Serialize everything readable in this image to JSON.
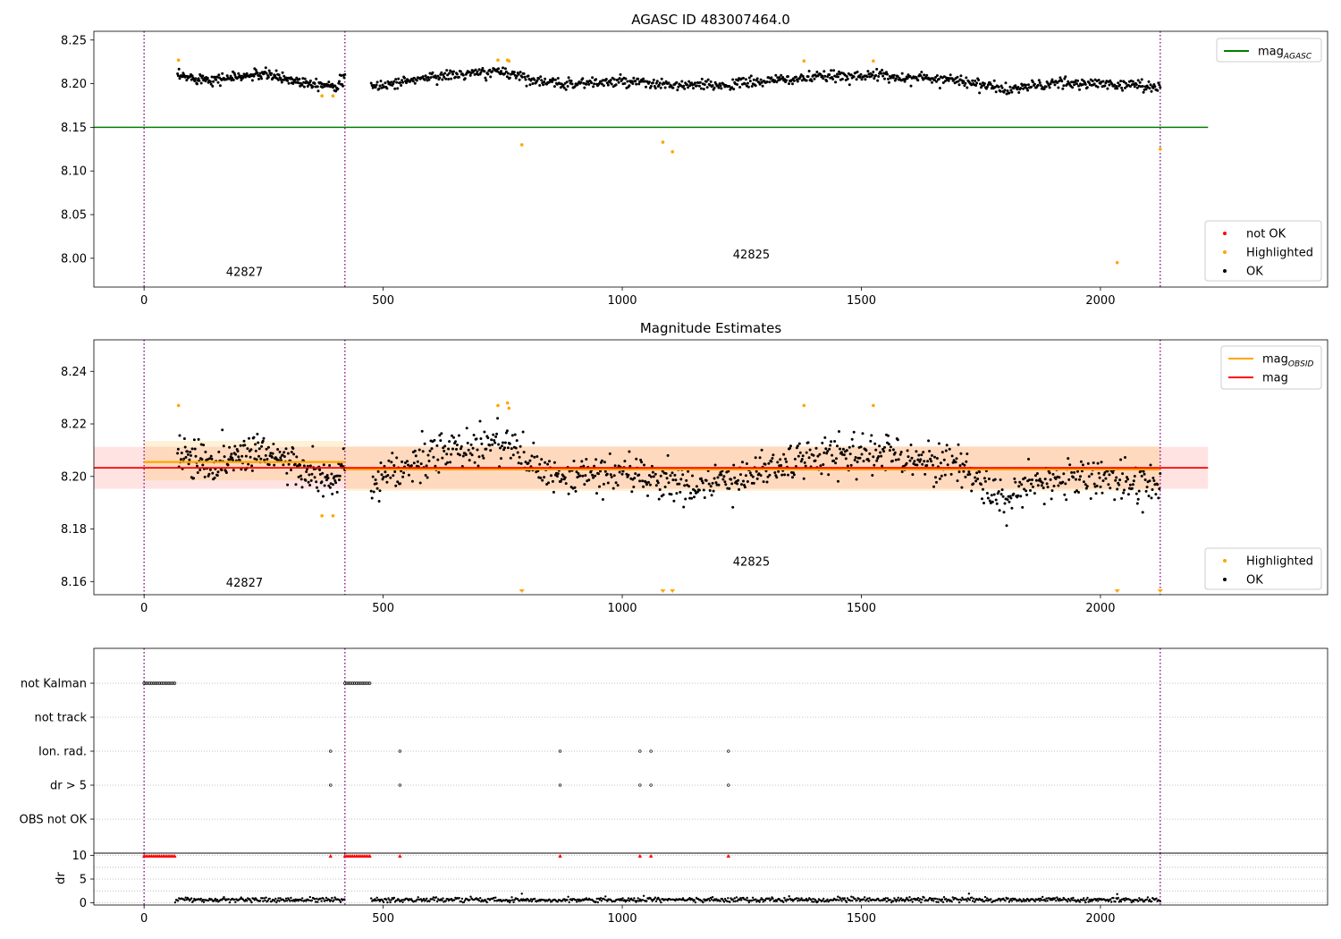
{
  "figure": {
    "title": "AGASC ID 483007464.0"
  },
  "chart_data": [
    {
      "type": "scatter",
      "title": "",
      "xlabel": "",
      "ylabel": "",
      "xlim": [
        -105,
        2475
      ],
      "ylim": [
        7.967,
        8.26
      ],
      "x_ticks": [
        0,
        500,
        1000,
        1500,
        2000
      ],
      "y_ticks": [
        8.0,
        8.05,
        8.1,
        8.15,
        8.2,
        8.25
      ],
      "y_tick_labels": [
        "8.00",
        "8.05",
        "8.10",
        "8.15",
        "8.20",
        "8.25"
      ],
      "obs_boundaries": [
        0,
        420,
        2125
      ],
      "obs_labels": [
        {
          "text": "42827",
          "x": 210,
          "y": 7.98
        },
        {
          "text": "42825",
          "x": 1270,
          "y": 8.0
        }
      ],
      "reference_lines": [
        {
          "name": "mag_AGASC",
          "y": 8.15,
          "x_range": [
            -105,
            2225
          ],
          "color": "#008000"
        }
      ],
      "ok_segments": [
        {
          "x_range": [
            70,
            420
          ],
          "profile": [
            [
              70,
              8.208
            ],
            [
              150,
              8.205
            ],
            [
              250,
              8.211
            ],
            [
              320,
              8.203
            ],
            [
              400,
              8.198
            ],
            [
              420,
              8.205
            ]
          ],
          "scatter": 0.005,
          "count": 240
        },
        {
          "x_range": [
            475,
            2125
          ],
          "profile": [
            [
              475,
              8.196
            ],
            [
              600,
              8.208
            ],
            [
              750,
              8.214
            ],
            [
              850,
              8.2
            ],
            [
              1000,
              8.202
            ],
            [
              1100,
              8.198
            ],
            [
              1200,
              8.198
            ],
            [
              1300,
              8.203
            ],
            [
              1400,
              8.207
            ],
            [
              1500,
              8.21
            ],
            [
              1600,
              8.207
            ],
            [
              1700,
              8.205
            ],
            [
              1800,
              8.193
            ],
            [
              1900,
              8.2
            ],
            [
              2000,
              8.2
            ],
            [
              2125,
              8.197
            ]
          ],
          "scatter": 0.005,
          "count": 900
        }
      ],
      "highlighted": [
        [
          72,
          8.227
        ],
        [
          372,
          8.186
        ],
        [
          395,
          8.186
        ],
        [
          740,
          8.227
        ],
        [
          760,
          8.227
        ],
        [
          763,
          8.226
        ],
        [
          790,
          8.13
        ],
        [
          1085,
          8.133
        ],
        [
          1105,
          8.122
        ],
        [
          1380,
          8.226
        ],
        [
          1525,
          8.226
        ],
        [
          2035,
          7.995
        ],
        [
          2125,
          8.125
        ]
      ],
      "colors": {
        "ok": "#000000",
        "highlighted": "#ffa500",
        "not_ok": "#ff0000",
        "boundary": "#800080"
      },
      "legends": [
        {
          "position": "top-right",
          "entries": [
            {
              "label": "mag",
              "sub": "AGASC",
              "kind": "line",
              "color": "#008000"
            }
          ]
        },
        {
          "position": "bottom-right",
          "entries": [
            {
              "label": "not OK",
              "kind": "dot",
              "color": "#ff0000"
            },
            {
              "label": "Highlighted",
              "kind": "dot",
              "color": "#ffa500"
            },
            {
              "label": "OK",
              "kind": "dot",
              "color": "#000000"
            }
          ]
        }
      ]
    },
    {
      "type": "scatter",
      "title": "Magnitude Estimates",
      "xlabel": "",
      "ylabel": "",
      "xlim": [
        -105,
        2475
      ],
      "ylim": [
        8.155,
        8.252
      ],
      "x_ticks": [
        0,
        500,
        1000,
        1500,
        2000
      ],
      "y_ticks": [
        8.16,
        8.18,
        8.2,
        8.22,
        8.24
      ],
      "y_tick_labels": [
        "8.16",
        "8.18",
        "8.20",
        "8.22",
        "8.24"
      ],
      "obs_boundaries": [
        0,
        420,
        2125
      ],
      "obs_labels": [
        {
          "text": "42827",
          "x": 210,
          "y": 8.158
        },
        {
          "text": "42825",
          "x": 1270,
          "y": 8.166
        }
      ],
      "mag": {
        "value": 8.2033,
        "band": [
          8.1953,
          8.2113
        ],
        "x_range": [
          -105,
          2225
        ],
        "color": "#ff0000"
      },
      "mag_obsid": [
        {
          "x_range": [
            0,
            420
          ],
          "value": 8.2055,
          "band": [
            8.1985,
            8.2135
          ]
        },
        {
          "x_range": [
            420,
            2125
          ],
          "value": 8.2027,
          "band": [
            8.1945,
            8.2115
          ]
        }
      ],
      "ok_segments": [
        {
          "x_range": [
            70,
            420
          ],
          "profile": [
            [
              70,
              8.208
            ],
            [
              150,
              8.205
            ],
            [
              250,
              8.211
            ],
            [
              320,
              8.203
            ],
            [
              400,
              8.197
            ],
            [
              420,
              8.205
            ]
          ],
          "scatter": 0.006,
          "count": 240
        },
        {
          "x_range": [
            475,
            2125
          ],
          "profile": [
            [
              475,
              8.196
            ],
            [
              600,
              8.208
            ],
            [
              750,
              8.214
            ],
            [
              850,
              8.199
            ],
            [
              1000,
              8.202
            ],
            [
              1100,
              8.197
            ],
            [
              1200,
              8.197
            ],
            [
              1300,
              8.203
            ],
            [
              1400,
              8.207
            ],
            [
              1500,
              8.21
            ],
            [
              1600,
              8.207
            ],
            [
              1700,
              8.205
            ],
            [
              1800,
              8.191
            ],
            [
              1900,
              8.199
            ],
            [
              2000,
              8.2
            ],
            [
              2125,
              8.196
            ]
          ],
          "scatter": 0.006,
          "count": 900
        }
      ],
      "highlighted": [
        [
          72,
          8.227
        ],
        [
          372,
          8.185
        ],
        [
          395,
          8.185
        ],
        [
          740,
          8.227
        ],
        [
          760,
          8.228
        ],
        [
          763,
          8.226
        ],
        [
          1380,
          8.227
        ],
        [
          1525,
          8.227
        ]
      ],
      "highlighted_below_axis": [
        790,
        1085,
        1105,
        2035,
        2125
      ],
      "colors": {
        "ok": "#000000",
        "highlighted": "#ffa500",
        "mag_obsid": "#ffa500",
        "mag": "#ff0000",
        "boundary": "#800080"
      },
      "legends": [
        {
          "position": "top-right",
          "entries": [
            {
              "label": "mag",
              "sub": "OBSID",
              "kind": "line",
              "color": "#ffa500"
            },
            {
              "label": "mag",
              "kind": "line",
              "color": "#ff0000"
            }
          ]
        },
        {
          "position": "bottom-right",
          "entries": [
            {
              "label": "Highlighted",
              "kind": "dot",
              "color": "#ffa500"
            },
            {
              "label": "OK",
              "kind": "dot",
              "color": "#000000"
            }
          ]
        }
      ]
    },
    {
      "type": "scatter",
      "title": "",
      "xlabel": "",
      "ylabel": "",
      "xlim": [
        -105,
        2475
      ],
      "x_ticks": [
        0,
        500,
        1000,
        1500,
        2000
      ],
      "obs_boundaries": [
        0,
        420,
        2125
      ],
      "flag_rows": [
        "not Kalman",
        "not track",
        "Ion. rad.",
        "dr > 5",
        "OBS not OK"
      ],
      "flags": {
        "not Kalman": {
          "ranges": [
            [
              0,
              65
            ],
            [
              420,
              475
            ]
          ],
          "points": []
        },
        "not track": {
          "ranges": [],
          "points": []
        },
        "Ion. rad.": {
          "ranges": [],
          "points": [
            390,
            535,
            870,
            1037,
            1060,
            1222
          ]
        },
        "dr > 5": {
          "ranges": [],
          "points": [
            390,
            535,
            870,
            1037,
            1060,
            1222
          ]
        },
        "OBS not OK": {
          "ranges": [],
          "points": []
        }
      },
      "colors": {
        "flag": "#000000",
        "boundary": "#800080"
      }
    },
    {
      "type": "scatter",
      "title": "",
      "xlabel": "",
      "ylabel": "dr",
      "xlim": [
        -105,
        2475
      ],
      "ylim": [
        -0.5,
        10.5
      ],
      "x_ticks": [
        0,
        500,
        1000,
        1500,
        2000
      ],
      "x_tick_labels": [
        "0",
        "500",
        "1000",
        "1500",
        "2000"
      ],
      "y_ticks": [
        0,
        5,
        10
      ],
      "y_tick_labels": [
        "0",
        "5",
        "10"
      ],
      "obs_boundaries": [
        0,
        420,
        2125
      ],
      "clipped_points": {
        "value": 10,
        "ranges": [
          [
            0,
            65
          ],
          [
            420,
            475
          ]
        ],
        "points": [
          390,
          535,
          870,
          1037,
          1060,
          1222
        ]
      },
      "dr_segments": [
        {
          "x_range": [
            65,
            420
          ],
          "typical": 0.6,
          "spread": 0.5
        },
        {
          "x_range": [
            475,
            2125
          ],
          "typical": 0.6,
          "spread": 0.5
        }
      ],
      "dr_peaks": [
        [
          790,
          1.9
        ],
        [
          1725,
          1.9
        ],
        [
          2035,
          1.8
        ]
      ],
      "colors": {
        "dr": "#000000",
        "clipped": "#ff0000",
        "boundary": "#800080"
      }
    }
  ]
}
